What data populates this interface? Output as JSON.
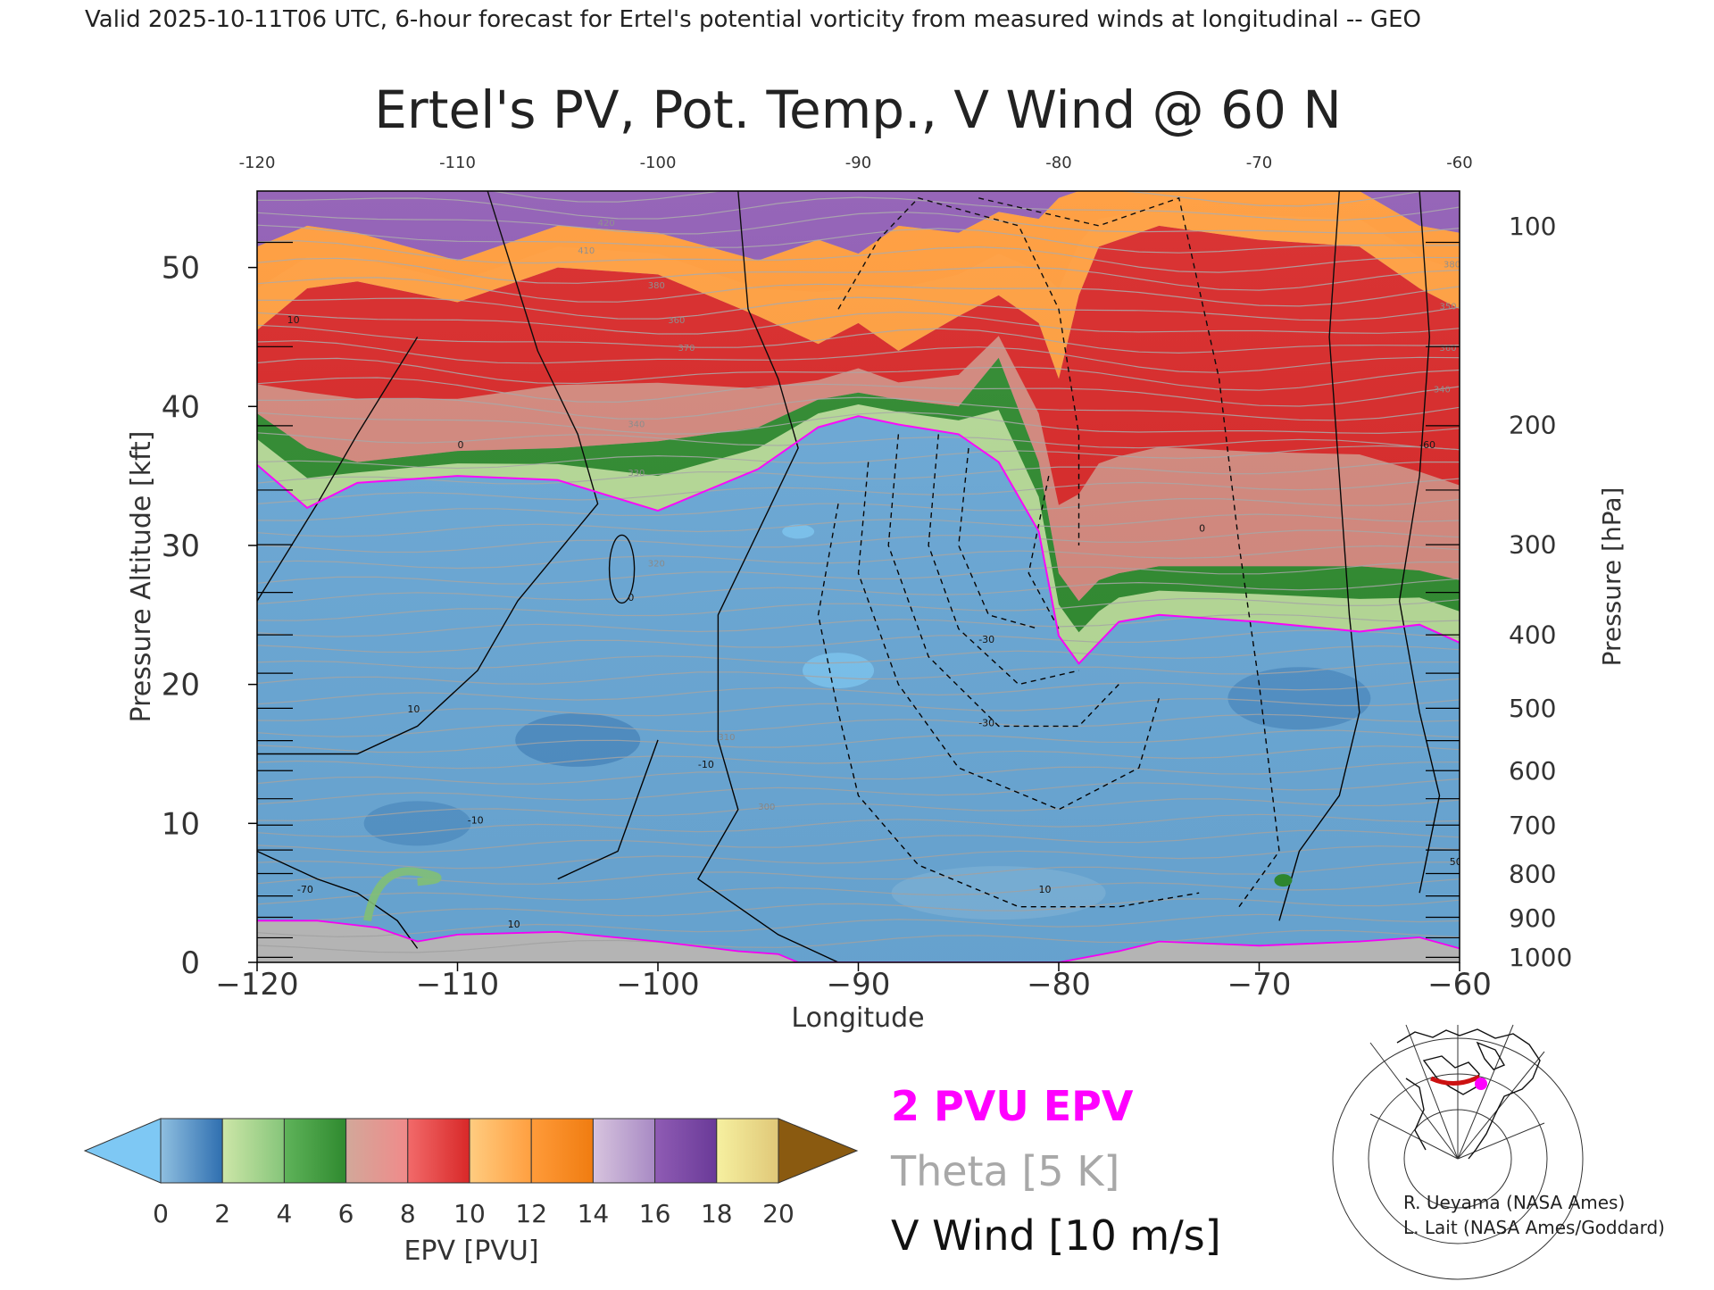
{
  "header": {
    "valid_text": "Valid 2025-10-11T06 UTC, 6-hour forecast for Ertel's potential vorticity from measured winds at longitudinal -- GEO"
  },
  "chart_data": {
    "type": "heatmap",
    "title": "Ertel's PV, Pot. Temp., V Wind @ 60 N",
    "xlabel": "Longitude",
    "ylabel_left": "Pressure Altitude [kft]",
    "ylabel_right": "Pressure [hPa]",
    "xlim": [
      -120,
      -60
    ],
    "ylim": [
      0,
      55.5
    ],
    "x_ticks": [
      -120,
      -110,
      -100,
      -90,
      -80,
      -70,
      -60
    ],
    "x_tick_labels": [
      "−120",
      "−110",
      "−100",
      "−90",
      "−80",
      "−70",
      "−60"
    ],
    "x_top_tick_labels": [
      "-120",
      "-110",
      "-100",
      "-90",
      "-80",
      "-70",
      "-60"
    ],
    "y_ticks": [
      0,
      10,
      20,
      30,
      40,
      50
    ],
    "pressure_ticks": [
      {
        "hpa": "100",
        "kft": 53.0
      },
      {
        "hpa": "200",
        "kft": 38.7
      },
      {
        "hpa": "300",
        "kft": 30.1
      },
      {
        "hpa": "400",
        "kft": 23.6
      },
      {
        "hpa": "500",
        "kft": 18.3
      },
      {
        "hpa": "600",
        "kft": 13.8
      },
      {
        "hpa": "700",
        "kft": 9.9
      },
      {
        "hpa": "800",
        "kft": 6.4
      },
      {
        "hpa": "900",
        "kft": 3.2
      },
      {
        "hpa": "1000",
        "kft": 0.4
      }
    ],
    "colorbar": {
      "label": "EPV [PVU]",
      "ticks": [
        0,
        2,
        4,
        6,
        8,
        10,
        12,
        14,
        16,
        18,
        20
      ],
      "under_color": "#7ec8f4",
      "over_color": "#8a5a10",
      "bins": [
        {
          "from": 0,
          "to": 2,
          "colors": [
            "#8fbfe0",
            "#2f6fb0"
          ]
        },
        {
          "from": 2,
          "to": 4,
          "colors": [
            "#cde6a8",
            "#86c57a"
          ]
        },
        {
          "from": 4,
          "to": 6,
          "colors": [
            "#5fb35a",
            "#2f8a2f"
          ]
        },
        {
          "from": 6,
          "to": 8,
          "colors": [
            "#d2a89a",
            "#f08a8a"
          ]
        },
        {
          "from": 8,
          "to": 10,
          "colors": [
            "#f26a6a",
            "#d82828"
          ]
        },
        {
          "from": 10,
          "to": 12,
          "colors": [
            "#ffcc80",
            "#ff9f40"
          ]
        },
        {
          "from": 12,
          "to": 14,
          "colors": [
            "#ff9b3a",
            "#f07c10"
          ]
        },
        {
          "from": 14,
          "to": 16,
          "colors": [
            "#d7c4de",
            "#a88ac4"
          ]
        },
        {
          "from": 16,
          "to": 18,
          "colors": [
            "#8f5cb4",
            "#6a3a98"
          ]
        },
        {
          "from": 18,
          "to": 20,
          "colors": [
            "#f6f0a0",
            "#e0c878"
          ]
        }
      ]
    },
    "pv_fields": [
      {
        "name": "tropopause-2pvu-kft",
        "x": [
          -120,
          -117.5,
          -115,
          -110,
          -105,
          -100,
          -95,
          -92,
          -90,
          -88,
          -85,
          -83,
          -81,
          -80,
          -79,
          -78,
          -77,
          -75,
          -70,
          -65,
          -62,
          -60
        ],
        "y": [
          35.8,
          32.7,
          34.5,
          35.0,
          34.7,
          32.5,
          35.5,
          38.5,
          39.3,
          38.7,
          38.0,
          36.0,
          31.0,
          23.5,
          21.5,
          23.0,
          24.5,
          25.0,
          24.5,
          23.8,
          24.3,
          23.0
        ]
      },
      {
        "name": "pv-4-top-kft",
        "x": [
          -120,
          -117.5,
          -115,
          -110,
          -105,
          -100,
          -95,
          -92,
          -90,
          -88,
          -85,
          -83,
          -81,
          -80,
          -79,
          -78,
          -77,
          -75,
          -70,
          -65,
          -62,
          -60
        ],
        "y": [
          39.5,
          37.0,
          36.0,
          36.8,
          37.0,
          37.5,
          38.5,
          40.5,
          41.0,
          40.5,
          40.0,
          43.5,
          36.0,
          28.0,
          26.0,
          27.5,
          28.0,
          28.5,
          28.5,
          28.5,
          28.2,
          27.5
        ]
      },
      {
        "name": "pv-10-top-kft",
        "x": [
          -120,
          -117.5,
          -115,
          -110,
          -105,
          -100,
          -95,
          -92,
          -90,
          -88,
          -85,
          -83,
          -81,
          -80,
          -79,
          -78,
          -77,
          -75,
          -70,
          -65,
          -62,
          -60
        ],
        "y": [
          45.5,
          48.5,
          49.0,
          47.5,
          50.0,
          49.5,
          46.5,
          44.5,
          46.0,
          44.0,
          46.5,
          48.0,
          46.0,
          42.0,
          48.0,
          51.5,
          52.0,
          53.0,
          52.0,
          51.5,
          48.5,
          47.0
        ]
      },
      {
        "name": "pv-14-top-kft",
        "x": [
          -120,
          -117.5,
          -115,
          -110,
          -105,
          -100,
          -95,
          -92,
          -90,
          -88,
          -85,
          -83,
          -81,
          -80,
          -79,
          -78,
          -77,
          -75,
          -70,
          -65,
          -62,
          -60
        ],
        "y": [
          51.5,
          53.0,
          52.5,
          50.5,
          53.0,
          52.5,
          50.5,
          52.0,
          51.0,
          53.0,
          52.5,
          54.0,
          53.5,
          55.0,
          55.5,
          55.5,
          55.5,
          55.5,
          55.5,
          55.5,
          53.0,
          52.5
        ]
      }
    ],
    "surface": {
      "name": "terrain-kft",
      "x": [
        -120,
        -117,
        -114,
        -112,
        -110,
        -105,
        -100,
        -96,
        -94,
        -93,
        -80,
        -77,
        -75,
        -70,
        -65,
        -62,
        -60
      ],
      "y": [
        3.0,
        3.0,
        2.5,
        1.5,
        2.0,
        2.2,
        1.5,
        0.8,
        0.6,
        0.0,
        0.0,
        0.8,
        1.5,
        1.2,
        1.5,
        1.8,
        1.0
      ]
    },
    "theta_labels_K": [
      "420",
      "410",
      "380",
      "360",
      "370",
      "340",
      "330",
      "320",
      "310",
      "300",
      "350",
      "380",
      "360",
      "340"
    ],
    "v_wind_labels": [
      "-30",
      "-30",
      "-10",
      "-10",
      "0",
      "0",
      "-70",
      "10",
      "10",
      "10",
      "0",
      "50",
      "10",
      "-60"
    ],
    "annotations": {
      "epv_legend": "2 PVU EPV",
      "theta_legend": "Theta [5 K]",
      "wind_legend": "V Wind [10 m/s]",
      "credit_1": "R. Ueyama (NASA Ames)",
      "credit_2": "L. Lait (NASA Ames/Goddard)"
    },
    "colors": {
      "epv_contour": "#ff00ff",
      "theta_contour": "#a8a8a8",
      "wind_contour": "#000000",
      "terrain": "#bbbbbb",
      "map_track": "#cc1111",
      "map_marker": "#ff00ff"
    }
  }
}
